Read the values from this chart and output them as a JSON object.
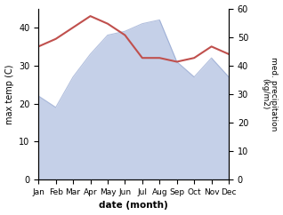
{
  "months": [
    "Jan",
    "Feb",
    "Mar",
    "Apr",
    "May",
    "Jun",
    "Jul",
    "Aug",
    "Sep",
    "Oct",
    "Nov",
    "Dec"
  ],
  "temperature": [
    35,
    37,
    40,
    43,
    41,
    38,
    32,
    32,
    31,
    32,
    35,
    33
  ],
  "precipitation_left_scale": [
    22,
    19,
    27,
    33,
    38,
    39,
    41,
    42,
    31,
    27,
    32,
    27
  ],
  "temp_color": "#c0504d",
  "precip_color_fill": "#c5d0e8",
  "precip_color_line": "#8096c8",
  "temp_ylim": [
    0,
    45
  ],
  "precip_ylim": [
    0,
    60
  ],
  "temp_yticks": [
    0,
    10,
    20,
    30,
    40
  ],
  "precip_yticks": [
    0,
    10,
    20,
    30,
    40,
    50,
    60
  ],
  "xlabel": "date (month)",
  "ylabel_left": "max temp (C)",
  "ylabel_right": "med. precipitation\n(kg/m2)",
  "figsize": [
    3.18,
    2.42
  ],
  "dpi": 100
}
